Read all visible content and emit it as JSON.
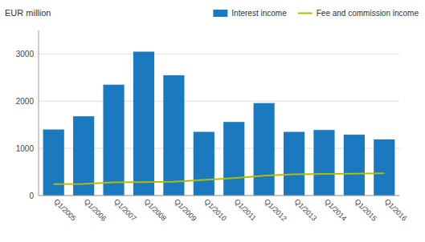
{
  "chart_data": {
    "type": "bar",
    "categories": [
      "Q1/2005",
      "Q1/2006",
      "Q1/2007",
      "Q1/2008",
      "Q1/2009",
      "Q1/2010",
      "Q1/2011",
      "Q1/2012",
      "Q1/2013",
      "Q1/2014",
      "Q1/2015",
      "Q1/2016"
    ],
    "series": [
      {
        "name": "Interest income",
        "type": "bar",
        "color": "#1b7abf",
        "values": [
          1400,
          1680,
          2350,
          3050,
          2550,
          1350,
          1560,
          1960,
          1350,
          1390,
          1290,
          1190
        ]
      },
      {
        "name": "Fee and commission income",
        "type": "line",
        "color": "#b5bd00",
        "values": [
          240,
          245,
          280,
          285,
          295,
          330,
          370,
          420,
          450,
          460,
          465,
          470
        ]
      }
    ],
    "y_label": "EUR million",
    "ylim": [
      0,
      3500
    ],
    "yticks": [
      0,
      1000,
      2000,
      3000
    ],
    "grid": true,
    "legend": "upper-right"
  }
}
